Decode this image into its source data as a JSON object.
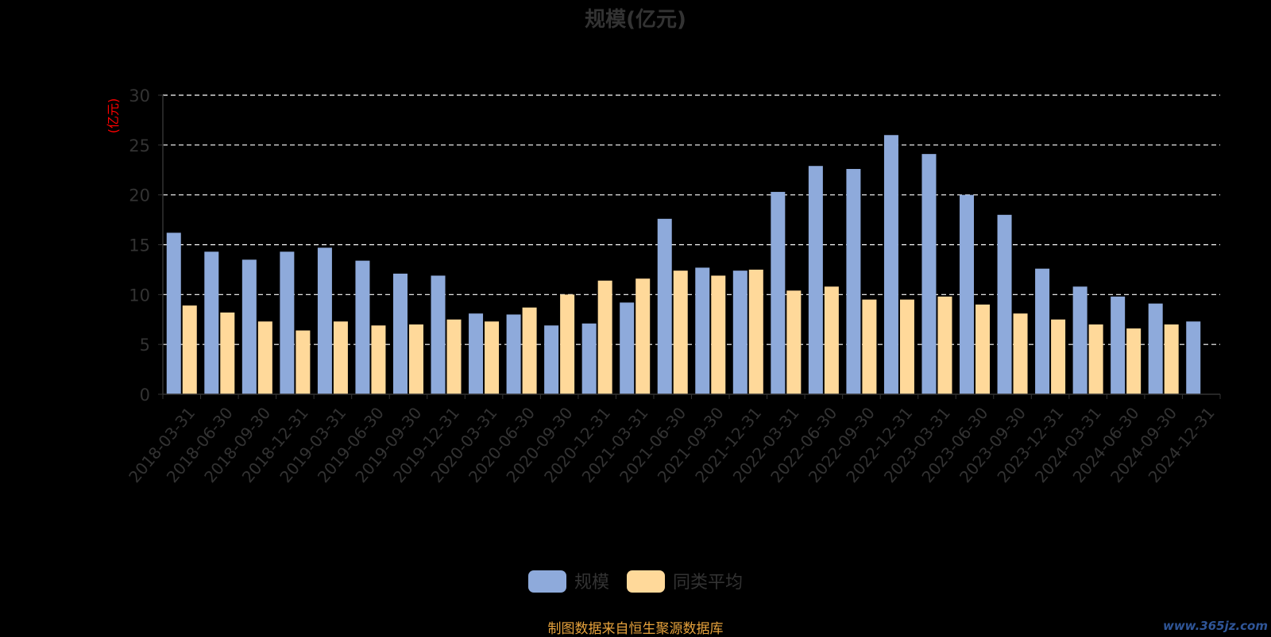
{
  "chart_data": {
    "type": "bar",
    "title": "规模(亿元)",
    "ylabel": "(亿元)",
    "ylim": [
      0,
      30
    ],
    "yticks": [
      0,
      5,
      10,
      15,
      20,
      25,
      30
    ],
    "grid": true,
    "legend_position": "bottom-center",
    "categories": [
      "2018-03-31",
      "2018-06-30",
      "2018-09-30",
      "2018-12-31",
      "2019-03-31",
      "2019-06-30",
      "2019-09-30",
      "2019-12-31",
      "2020-03-31",
      "2020-06-30",
      "2020-09-30",
      "2020-12-31",
      "2021-03-31",
      "2021-06-30",
      "2021-09-30",
      "2021-12-31",
      "2022-03-31",
      "2022-06-30",
      "2022-09-30",
      "2022-12-31",
      "2023-03-31",
      "2023-06-30",
      "2023-09-30",
      "2023-12-31",
      "2024-03-31",
      "2024-06-30",
      "2024-09-30",
      "2024-12-31"
    ],
    "series": [
      {
        "name": "规模",
        "color": "#8eaadb",
        "values": [
          16.2,
          14.3,
          13.5,
          14.3,
          14.7,
          13.4,
          12.1,
          11.9,
          8.1,
          8.0,
          6.9,
          7.1,
          9.2,
          17.6,
          12.7,
          12.4,
          20.3,
          22.9,
          22.6,
          26.0,
          24.1,
          20.0,
          18.0,
          12.6,
          10.8,
          9.8,
          9.1,
          7.3
        ]
      },
      {
        "name": "同类平均",
        "color": "#ffd99a",
        "values": [
          8.9,
          8.2,
          7.3,
          6.4,
          7.3,
          6.9,
          7.0,
          7.5,
          7.3,
          8.7,
          10.0,
          11.4,
          11.6,
          12.4,
          11.9,
          12.5,
          10.4,
          10.8,
          9.5,
          9.5,
          9.8,
          9.0,
          8.1,
          7.5,
          7.0,
          6.6,
          7.0,
          null
        ]
      }
    ]
  },
  "footer": {
    "source_text": "制图数据来自恒生聚源数据库",
    "watermark": "www.365jz.com"
  },
  "colors": {
    "background": "#000000",
    "axis_text": "#333333",
    "ylabel_color": "#ff0000",
    "grid_line": "#ffffff",
    "footer_text": "#e6a23c"
  }
}
